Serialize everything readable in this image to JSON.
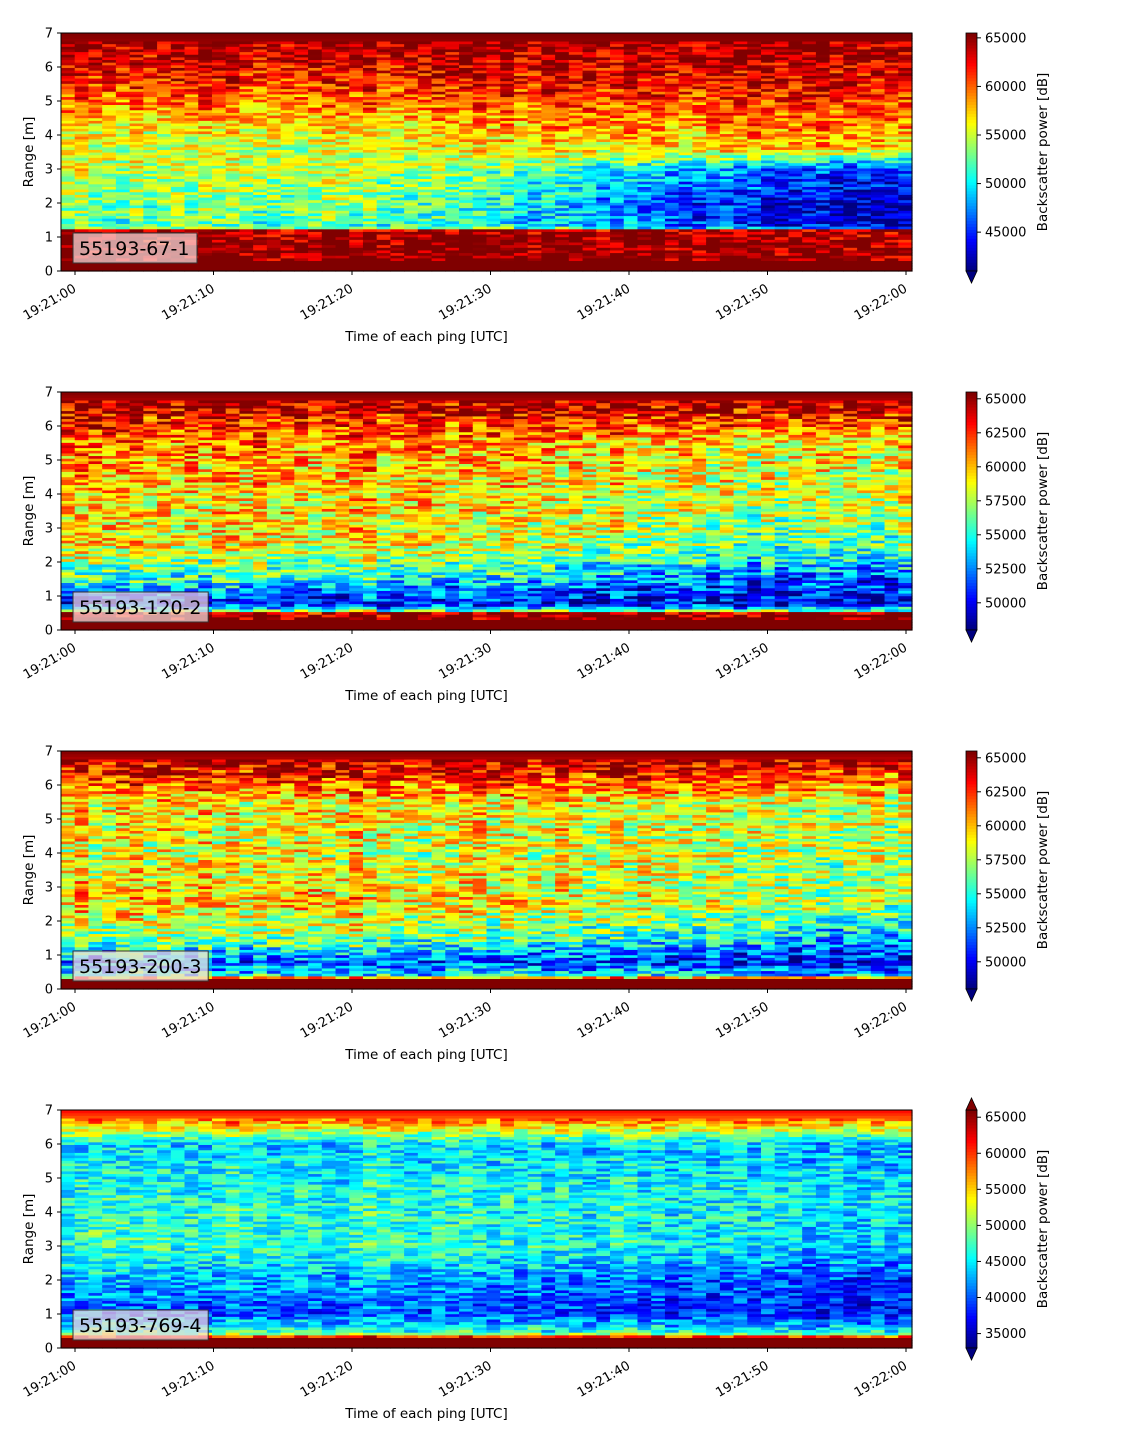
{
  "chart_data": [
    {
      "type": "heatmap",
      "label": "55193-67-1",
      "xlabel": "Time of each ping [UTC]",
      "ylabel": "Range [m]",
      "xticks": [
        "19:21:00",
        "19:21:10",
        "19:21:20",
        "19:21:30",
        "19:21:40",
        "19:21:50",
        "19:22:00"
      ],
      "yticks": [
        "0",
        "1",
        "2",
        "3",
        "4",
        "5",
        "6",
        "7"
      ],
      "ylim": [
        0,
        7
      ],
      "colorbar": {
        "label": "Backscatter power [dB]",
        "ticks": [
          "45000",
          "50000",
          "55000",
          "60000",
          "65000"
        ],
        "range": [
          41000,
          65500
        ],
        "extend": "min"
      },
      "description_profile": "strong near-field band 0.2-1.2 m, seabed-like band above 6.5 m, mid-range 1.5-4 m yellow/green, drops to blue 1-3 m after 19:21:35",
      "profile": [
        {
          "z": 0.0,
          "v": 65500
        },
        {
          "z": 0.25,
          "v": 65500
        },
        {
          "z": 1.2,
          "v": 65000
        },
        {
          "z": 1.3,
          "v": 52000
        },
        {
          "z": 2.0,
          "v": 53500
        },
        {
          "z": 3.0,
          "v": 55000
        },
        {
          "z": 4.0,
          "v": 56000
        },
        {
          "z": 5.0,
          "v": 60000
        },
        {
          "z": 6.0,
          "v": 63000
        },
        {
          "z": 6.5,
          "v": 64500
        },
        {
          "z": 7.0,
          "v": 65500
        }
      ],
      "late_profile": [
        {
          "z": 0.0,
          "v": 65500
        },
        {
          "z": 0.25,
          "v": 65500
        },
        {
          "z": 1.2,
          "v": 65000
        },
        {
          "z": 1.3,
          "v": 44000
        },
        {
          "z": 2.0,
          "v": 43000
        },
        {
          "z": 3.0,
          "v": 46000
        },
        {
          "z": 3.6,
          "v": 58000
        },
        {
          "z": 5.0,
          "v": 62000
        },
        {
          "z": 6.0,
          "v": 64000
        },
        {
          "z": 6.5,
          "v": 65000
        },
        {
          "z": 7.0,
          "v": 65500
        }
      ],
      "noise": 3500
    },
    {
      "type": "heatmap",
      "label": "55193-120-2",
      "xlabel": "Time of each ping [UTC]",
      "ylabel": "Range [m]",
      "xticks": [
        "19:21:00",
        "19:21:10",
        "19:21:20",
        "19:21:30",
        "19:21:40",
        "19:21:50",
        "19:22:00"
      ],
      "yticks": [
        "0",
        "1",
        "2",
        "3",
        "4",
        "5",
        "6",
        "7"
      ],
      "ylim": [
        0,
        7
      ],
      "colorbar": {
        "label": "Backscatter power [dB]",
        "ticks": [
          "50000",
          "52500",
          "55000",
          "57500",
          "60000",
          "62500",
          "65000"
        ],
        "range": [
          48000,
          65500
        ],
        "extend": "min"
      },
      "profile": [
        {
          "z": 0.0,
          "v": 65500
        },
        {
          "z": 0.5,
          "v": 65500
        },
        {
          "z": 0.6,
          "v": 55000
        },
        {
          "z": 0.8,
          "v": 50000
        },
        {
          "z": 1.5,
          "v": 55000
        },
        {
          "z": 2.5,
          "v": 59000
        },
        {
          "z": 4.0,
          "v": 59500
        },
        {
          "z": 5.5,
          "v": 61000
        },
        {
          "z": 6.5,
          "v": 64000
        },
        {
          "z": 7.0,
          "v": 65500
        }
      ],
      "late_profile": [
        {
          "z": 0.0,
          "v": 65500
        },
        {
          "z": 0.5,
          "v": 65500
        },
        {
          "z": 0.6,
          "v": 54000
        },
        {
          "z": 0.8,
          "v": 49500
        },
        {
          "z": 1.5,
          "v": 51500
        },
        {
          "z": 2.5,
          "v": 56000
        },
        {
          "z": 4.0,
          "v": 58000
        },
        {
          "z": 5.5,
          "v": 59000
        },
        {
          "z": 6.5,
          "v": 64000
        },
        {
          "z": 7.0,
          "v": 65500
        }
      ],
      "noise": 3200
    },
    {
      "type": "heatmap",
      "label": "55193-200-3",
      "xlabel": "Time of each ping [UTC]",
      "ylabel": "Range [m]",
      "xticks": [
        "19:21:00",
        "19:21:10",
        "19:21:20",
        "19:21:30",
        "19:21:40",
        "19:21:50",
        "19:22:00"
      ],
      "yticks": [
        "0",
        "1",
        "2",
        "3",
        "4",
        "5",
        "6",
        "7"
      ],
      "ylim": [
        0,
        7
      ],
      "colorbar": {
        "label": "Backscatter power [dB]",
        "ticks": [
          "50000",
          "52500",
          "55000",
          "57500",
          "60000",
          "62500",
          "65000"
        ],
        "range": [
          48000,
          65500
        ],
        "extend": "min"
      },
      "profile": [
        {
          "z": 0.0,
          "v": 65500
        },
        {
          "z": 0.3,
          "v": 65500
        },
        {
          "z": 0.4,
          "v": 55000
        },
        {
          "z": 0.8,
          "v": 52000
        },
        {
          "z": 1.5,
          "v": 57000
        },
        {
          "z": 2.5,
          "v": 60000
        },
        {
          "z": 4.0,
          "v": 58500
        },
        {
          "z": 5.5,
          "v": 59500
        },
        {
          "z": 6.3,
          "v": 63000
        },
        {
          "z": 7.0,
          "v": 65500
        }
      ],
      "late_profile": [
        {
          "z": 0.0,
          "v": 65500
        },
        {
          "z": 0.3,
          "v": 65500
        },
        {
          "z": 0.4,
          "v": 54000
        },
        {
          "z": 0.8,
          "v": 50000
        },
        {
          "z": 1.5,
          "v": 53500
        },
        {
          "z": 2.5,
          "v": 57500
        },
        {
          "z": 4.0,
          "v": 57500
        },
        {
          "z": 5.5,
          "v": 58500
        },
        {
          "z": 6.3,
          "v": 62500
        },
        {
          "z": 7.0,
          "v": 65500
        }
      ],
      "noise": 3200
    },
    {
      "type": "heatmap",
      "label": "55193-769-4",
      "xlabel": "Time of each ping [UTC]",
      "ylabel": "Range [m]",
      "xticks": [
        "19:21:00",
        "19:21:10",
        "19:21:20",
        "19:21:30",
        "19:21:40",
        "19:21:50",
        "19:22:00"
      ],
      "yticks": [
        "0",
        "1",
        "2",
        "3",
        "4",
        "5",
        "6",
        "7"
      ],
      "ylim": [
        0,
        7
      ],
      "colorbar": {
        "label": "Backscatter power [dB]",
        "ticks": [
          "35000",
          "40000",
          "45000",
          "50000",
          "55000",
          "60000",
          "65000"
        ],
        "range": [
          33000,
          66000
        ],
        "extend": "both"
      },
      "profile": [
        {
          "z": 0.0,
          "v": 66000
        },
        {
          "z": 0.3,
          "v": 66000
        },
        {
          "z": 0.45,
          "v": 48000
        },
        {
          "z": 1.0,
          "v": 40000
        },
        {
          "z": 2.0,
          "v": 43000
        },
        {
          "z": 3.0,
          "v": 47500
        },
        {
          "z": 4.5,
          "v": 46500
        },
        {
          "z": 6.0,
          "v": 44500
        },
        {
          "z": 6.7,
          "v": 58000
        },
        {
          "z": 7.0,
          "v": 62000
        }
      ],
      "late_profile": [
        {
          "z": 0.0,
          "v": 66000
        },
        {
          "z": 0.3,
          "v": 66000
        },
        {
          "z": 0.45,
          "v": 46000
        },
        {
          "z": 1.0,
          "v": 37500
        },
        {
          "z": 2.0,
          "v": 39000
        },
        {
          "z": 3.0,
          "v": 44000
        },
        {
          "z": 4.5,
          "v": 45000
        },
        {
          "z": 6.0,
          "v": 43000
        },
        {
          "z": 6.7,
          "v": 58000
        },
        {
          "z": 7.0,
          "v": 62000
        }
      ],
      "noise": 4200
    }
  ]
}
